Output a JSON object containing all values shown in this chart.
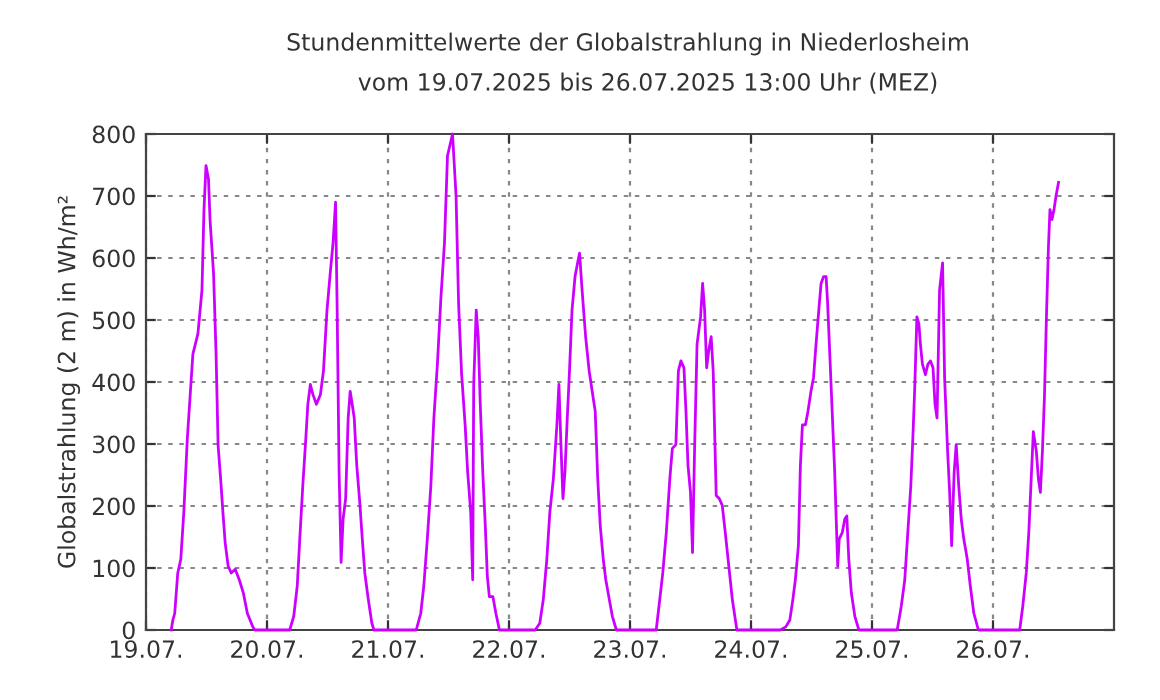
{
  "chart_data": {
    "type": "line",
    "title": "Stundenmittelwerte der Globalstrahlung in Niederlosheim",
    "subtitle": "vom 19.07.2025 bis 26.07.2025 13:00 Uhr (MEZ)",
    "ylabel": "Globalstrahlung (2 m) in Wh/m²",
    "xlim": [
      "2025-07-19",
      "2025-07-27"
    ],
    "xticks": [
      {
        "value": "2025-07-19",
        "label": "19.07."
      },
      {
        "value": "2025-07-20",
        "label": "20.07."
      },
      {
        "value": "2025-07-21",
        "label": "21.07."
      },
      {
        "value": "2025-07-22",
        "label": "22.07."
      },
      {
        "value": "2025-07-23",
        "label": "23.07."
      },
      {
        "value": "2025-07-24",
        "label": "24.07."
      },
      {
        "value": "2025-07-25",
        "label": "25.07."
      },
      {
        "value": "2025-07-26",
        "label": "26.07."
      }
    ],
    "ylim": [
      0,
      800
    ],
    "yticks": [
      0,
      100,
      200,
      300,
      400,
      500,
      600,
      700,
      800
    ],
    "grid": true,
    "line_style": "solid",
    "marker": "none",
    "series": [
      {
        "color": "#cc00ff",
        "x": [
          "2025-07-19T05:00",
          "2025-07-19T05:18",
          "2025-07-19T05:42",
          "2025-07-19T06:18",
          "2025-07-19T06:54",
          "2025-07-19T07:30",
          "2025-07-19T08:12",
          "2025-07-19T08:54",
          "2025-07-19T09:18",
          "2025-07-19T10:18",
          "2025-07-19T11:06",
          "2025-07-19T11:30",
          "2025-07-19T11:54",
          "2025-07-19T12:24",
          "2025-07-19T12:42",
          "2025-07-19T13:24",
          "2025-07-19T13:54",
          "2025-07-19T14:18",
          "2025-07-19T14:48",
          "2025-07-19T15:18",
          "2025-07-19T15:42",
          "2025-07-19T16:18",
          "2025-07-19T16:54",
          "2025-07-19T17:42",
          "2025-07-19T18:30",
          "2025-07-19T19:18",
          "2025-07-19T20:06",
          "2025-07-19T21:12",
          "2025-07-19T21:36",
          "2025-07-20T04:30",
          "2025-07-20T05:18",
          "2025-07-20T06:00",
          "2025-07-20T06:30",
          "2025-07-20T07:06",
          "2025-07-20T07:42",
          "2025-07-20T08:06",
          "2025-07-20T08:36",
          "2025-07-20T09:06",
          "2025-07-20T09:48",
          "2025-07-20T10:36",
          "2025-07-20T11:12",
          "2025-07-20T11:54",
          "2025-07-20T12:36",
          "2025-07-20T13:06",
          "2025-07-20T13:36",
          "2025-07-20T13:54",
          "2025-07-20T14:18",
          "2025-07-20T14:42",
          "2025-07-20T15:06",
          "2025-07-20T15:36",
          "2025-07-20T16:06",
          "2025-07-20T16:30",
          "2025-07-20T16:54",
          "2025-07-20T17:18",
          "2025-07-20T17:48",
          "2025-07-20T18:24",
          "2025-07-20T18:54",
          "2025-07-20T19:24",
          "2025-07-20T20:06",
          "2025-07-20T20:48",
          "2025-07-20T21:12",
          "2025-07-21T05:36",
          "2025-07-21T06:30",
          "2025-07-21T07:06",
          "2025-07-21T07:48",
          "2025-07-21T08:30",
          "2025-07-21T09:06",
          "2025-07-21T09:48",
          "2025-07-21T10:30",
          "2025-07-21T11:12",
          "2025-07-21T11:48",
          "2025-07-21T12:48",
          "2025-07-21T13:30",
          "2025-07-21T14:00",
          "2025-07-21T14:36",
          "2025-07-21T15:18",
          "2025-07-21T15:48",
          "2025-07-21T16:24",
          "2025-07-21T16:48",
          "2025-07-21T17:00",
          "2025-07-21T17:30",
          "2025-07-21T17:54",
          "2025-07-21T18:18",
          "2025-07-21T18:48",
          "2025-07-21T19:18",
          "2025-07-21T19:42",
          "2025-07-21T20:06",
          "2025-07-21T20:48",
          "2025-07-21T21:24",
          "2025-07-21T22:06",
          "2025-07-22T05:12",
          "2025-07-22T06:06",
          "2025-07-22T06:48",
          "2025-07-22T07:30",
          "2025-07-22T08:06",
          "2025-07-22T08:48",
          "2025-07-22T09:30",
          "2025-07-22T09:54",
          "2025-07-22T10:18",
          "2025-07-22T10:42",
          "2025-07-22T11:06",
          "2025-07-22T11:30",
          "2025-07-22T12:00",
          "2025-07-22T12:30",
          "2025-07-22T13:06",
          "2025-07-22T13:36",
          "2025-07-22T14:00",
          "2025-07-22T14:30",
          "2025-07-22T15:12",
          "2025-07-22T15:54",
          "2025-07-22T16:30",
          "2025-07-22T17:06",
          "2025-07-22T17:36",
          "2025-07-22T18:06",
          "2025-07-22T18:42",
          "2025-07-22T19:12",
          "2025-07-22T19:54",
          "2025-07-22T20:30",
          "2025-07-22T21:18",
          "2025-07-23T05:12",
          "2025-07-23T05:54",
          "2025-07-23T06:30",
          "2025-07-23T07:12",
          "2025-07-23T07:54",
          "2025-07-23T08:24",
          "2025-07-23T09:06",
          "2025-07-23T09:36",
          "2025-07-23T10:06",
          "2025-07-23T10:42",
          "2025-07-23T11:06",
          "2025-07-23T11:30",
          "2025-07-23T12:00",
          "2025-07-23T12:24",
          "2025-07-23T12:48",
          "2025-07-23T13:18",
          "2025-07-23T14:00",
          "2025-07-23T14:24",
          "2025-07-23T14:48",
          "2025-07-23T15:12",
          "2025-07-23T15:36",
          "2025-07-23T16:06",
          "2025-07-23T16:30",
          "2025-07-23T17:06",
          "2025-07-23T17:42",
          "2025-07-23T18:18",
          "2025-07-23T18:54",
          "2025-07-23T19:36",
          "2025-07-23T20:18",
          "2025-07-23T21:12",
          "2025-07-24T05:48",
          "2025-07-24T06:54",
          "2025-07-24T07:42",
          "2025-07-24T08:18",
          "2025-07-24T08:48",
          "2025-07-24T09:24",
          "2025-07-24T09:48",
          "2025-07-24T10:12",
          "2025-07-24T10:48",
          "2025-07-24T11:18",
          "2025-07-24T11:54",
          "2025-07-24T12:24",
          "2025-07-24T12:54",
          "2025-07-24T13:30",
          "2025-07-24T13:54",
          "2025-07-24T14:24",
          "2025-07-24T14:54",
          "2025-07-24T15:12",
          "2025-07-24T15:36",
          "2025-07-24T16:06",
          "2025-07-24T16:36",
          "2025-07-24T16:54",
          "2025-07-24T17:12",
          "2025-07-24T17:30",
          "2025-07-24T18:06",
          "2025-07-24T18:36",
          "2025-07-24T19:00",
          "2025-07-24T19:24",
          "2025-07-24T19:54",
          "2025-07-24T20:36",
          "2025-07-24T21:24",
          "2025-07-25T05:00",
          "2025-07-25T05:48",
          "2025-07-25T06:30",
          "2025-07-25T07:06",
          "2025-07-25T07:42",
          "2025-07-25T08:06",
          "2025-07-25T08:30",
          "2025-07-25T08:54",
          "2025-07-25T09:18",
          "2025-07-25T09:36",
          "2025-07-25T10:00",
          "2025-07-25T10:36",
          "2025-07-25T11:06",
          "2025-07-25T11:36",
          "2025-07-25T12:06",
          "2025-07-25T12:30",
          "2025-07-25T12:54",
          "2025-07-25T13:24",
          "2025-07-25T14:00",
          "2025-07-25T14:24",
          "2025-07-25T15:00",
          "2025-07-25T15:24",
          "2025-07-25T15:48",
          "2025-07-25T16:18",
          "2025-07-25T16:42",
          "2025-07-25T17:12",
          "2025-07-25T17:42",
          "2025-07-25T18:12",
          "2025-07-25T18:54",
          "2025-07-25T19:30",
          "2025-07-25T20:12",
          "2025-07-25T21:06",
          "2025-07-26T05:18",
          "2025-07-26T05:54",
          "2025-07-26T06:36",
          "2025-07-26T07:06",
          "2025-07-26T07:42",
          "2025-07-26T08:00",
          "2025-07-26T08:36",
          "2025-07-26T09:00",
          "2025-07-26T09:24",
          "2025-07-26T09:48",
          "2025-07-26T10:12",
          "2025-07-26T10:36",
          "2025-07-26T11:00",
          "2025-07-26T11:18",
          "2025-07-26T11:42",
          "2025-07-26T12:06",
          "2025-07-26T12:30",
          "2025-07-26T13:00"
        ],
        "values": [
          0,
          15,
          27,
          92,
          114,
          190,
          309,
          396,
          445,
          478,
          548,
          678,
          749,
          727,
          662,
          575,
          445,
          298,
          244,
          185,
          141,
          103,
          92,
          98,
          81,
          60,
          27,
          5,
          0,
          0,
          22,
          71,
          147,
          233,
          309,
          364,
          396,
          380,
          364,
          380,
          418,
          516,
          581,
          624,
          690,
          527,
          255,
          109,
          179,
          212,
          342,
          385,
          364,
          342,
          266,
          206,
          147,
          92,
          49,
          11,
          0,
          0,
          27,
          71,
          147,
          233,
          342,
          429,
          537,
          624,
          765,
          800,
          700,
          527,
          413,
          331,
          255,
          191,
          81,
          396,
          516,
          473,
          364,
          255,
          168,
          87,
          54,
          54,
          27,
          0,
          0,
          11,
          49,
          114,
          190,
          244,
          331,
          396,
          299,
          212,
          255,
          331,
          418,
          516,
          570,
          592,
          608,
          548,
          473,
          418,
          385,
          353,
          244,
          168,
          114,
          81,
          49,
          22,
          0,
          0,
          49,
          92,
          157,
          244,
          293,
          299,
          418,
          434,
          423,
          353,
          266,
          222,
          125,
          288,
          461,
          505,
          559,
          516,
          423,
          450,
          473,
          418,
          217,
          212,
          201,
          157,
          103,
          49,
          0,
          0,
          5,
          16,
          49,
          81,
          136,
          266,
          331,
          331,
          353,
          385,
          407,
          461,
          521,
          559,
          570,
          570,
          527,
          450,
          353,
          255,
          179,
          103,
          147,
          157,
          179,
          184,
          114,
          60,
          22,
          0,
          0,
          38,
          81,
          157,
          233,
          309,
          396,
          505,
          494,
          461,
          429,
          412,
          429,
          434,
          423,
          364,
          342,
          548,
          592,
          407,
          288,
          222,
          136,
          255,
          299,
          233,
          179,
          147,
          114,
          71,
          27,
          0,
          0,
          38,
          92,
          157,
          266,
          320,
          288,
          244,
          222,
          288,
          375,
          505,
          619,
          678,
          662,
          678,
          700,
          722
        ]
      }
    ]
  }
}
